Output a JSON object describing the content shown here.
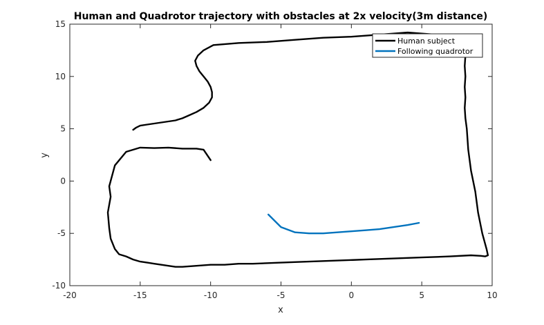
{
  "chart_data": {
    "type": "line",
    "title": "Human and Quadrotor trajectory with obstacles at 2x velocity(3m distance)",
    "xlabel": "x",
    "ylabel": "y",
    "xlim": [
      -20,
      10
    ],
    "ylim": [
      -10,
      15
    ],
    "xticks": [
      -20,
      -15,
      -10,
      -5,
      0,
      5,
      10
    ],
    "yticks": [
      -10,
      -5,
      0,
      5,
      10,
      15
    ],
    "grid": false,
    "legend_position": "top-right",
    "series": [
      {
        "name": "Human subject",
        "color": "#000000",
        "x": [
          -10,
          -10.5,
          -11,
          -12,
          -13,
          -14,
          -15,
          -16,
          -16.8,
          -17,
          -17.2,
          -17.1,
          -17.3,
          -17.2,
          -17.1,
          -16.8,
          -16.5,
          -16,
          -15.5,
          -15,
          -14.5,
          -14,
          -13.5,
          -13,
          -12.5,
          -12,
          -11,
          -10,
          -9,
          -8,
          -7,
          -5,
          -3,
          -1,
          1,
          3,
          5,
          7,
          8.5,
          9.2,
          9.5,
          9.7,
          9.6,
          9.3,
          9,
          8.8,
          8.5,
          8.3,
          8.2,
          8.1,
          8.05,
          8.1,
          8.05,
          8.1,
          8.05,
          8.1,
          8.0,
          7.5,
          6,
          4,
          2,
          0,
          -2,
          -4,
          -6,
          -8,
          -9.8,
          -10.5,
          -10.9,
          -11.1,
          -11.0,
          -10.8,
          -10.5,
          -10.2,
          -10.0,
          -9.9,
          -9.9,
          -10.1,
          -10.5,
          -11,
          -11.5,
          -12,
          -12.5,
          -13,
          -13.5,
          -14,
          -14.5,
          -15,
          -15.3,
          -15.5
        ],
        "y": [
          2.0,
          3.0,
          3.1,
          3.1,
          3.2,
          3.15,
          3.2,
          2.8,
          1.5,
          0.5,
          -0.5,
          -1.5,
          -3.0,
          -4.5,
          -5.5,
          -6.5,
          -7.0,
          -7.2,
          -7.5,
          -7.7,
          -7.8,
          -7.9,
          -8.0,
          -8.1,
          -8.2,
          -8.2,
          -8.1,
          -8.0,
          -8.0,
          -7.9,
          -7.9,
          -7.8,
          -7.7,
          -7.6,
          -7.5,
          -7.4,
          -7.3,
          -7.2,
          -7.1,
          -7.15,
          -7.2,
          -7.1,
          -6.5,
          -5.0,
          -3.0,
          -1.0,
          1.0,
          3.0,
          5.0,
          6.0,
          7.0,
          8.0,
          9.0,
          10.0,
          11.0,
          12.0,
          12.8,
          13.5,
          14.0,
          14.2,
          14.0,
          13.8,
          13.7,
          13.5,
          13.3,
          13.2,
          13.0,
          12.5,
          12.0,
          11.5,
          11.0,
          10.5,
          10.0,
          9.5,
          9.0,
          8.5,
          8.0,
          7.5,
          7.0,
          6.6,
          6.3,
          6.0,
          5.8,
          5.7,
          5.6,
          5.5,
          5.4,
          5.3,
          5.1,
          4.9
        ],
        "note_free": true
      },
      {
        "name": "Following quadrotor",
        "color": "#0072bd",
        "x": [
          -5.9,
          -5.0,
          -4.0,
          -3.0,
          -2.0,
          -1.0,
          0.0,
          1.0,
          2.0,
          3.0,
          4.0,
          4.8
        ],
        "y": [
          -3.2,
          -4.4,
          -4.9,
          -5.0,
          -5.0,
          -4.9,
          -4.8,
          -4.7,
          -4.6,
          -4.4,
          -4.2,
          -4.0
        ]
      }
    ]
  }
}
